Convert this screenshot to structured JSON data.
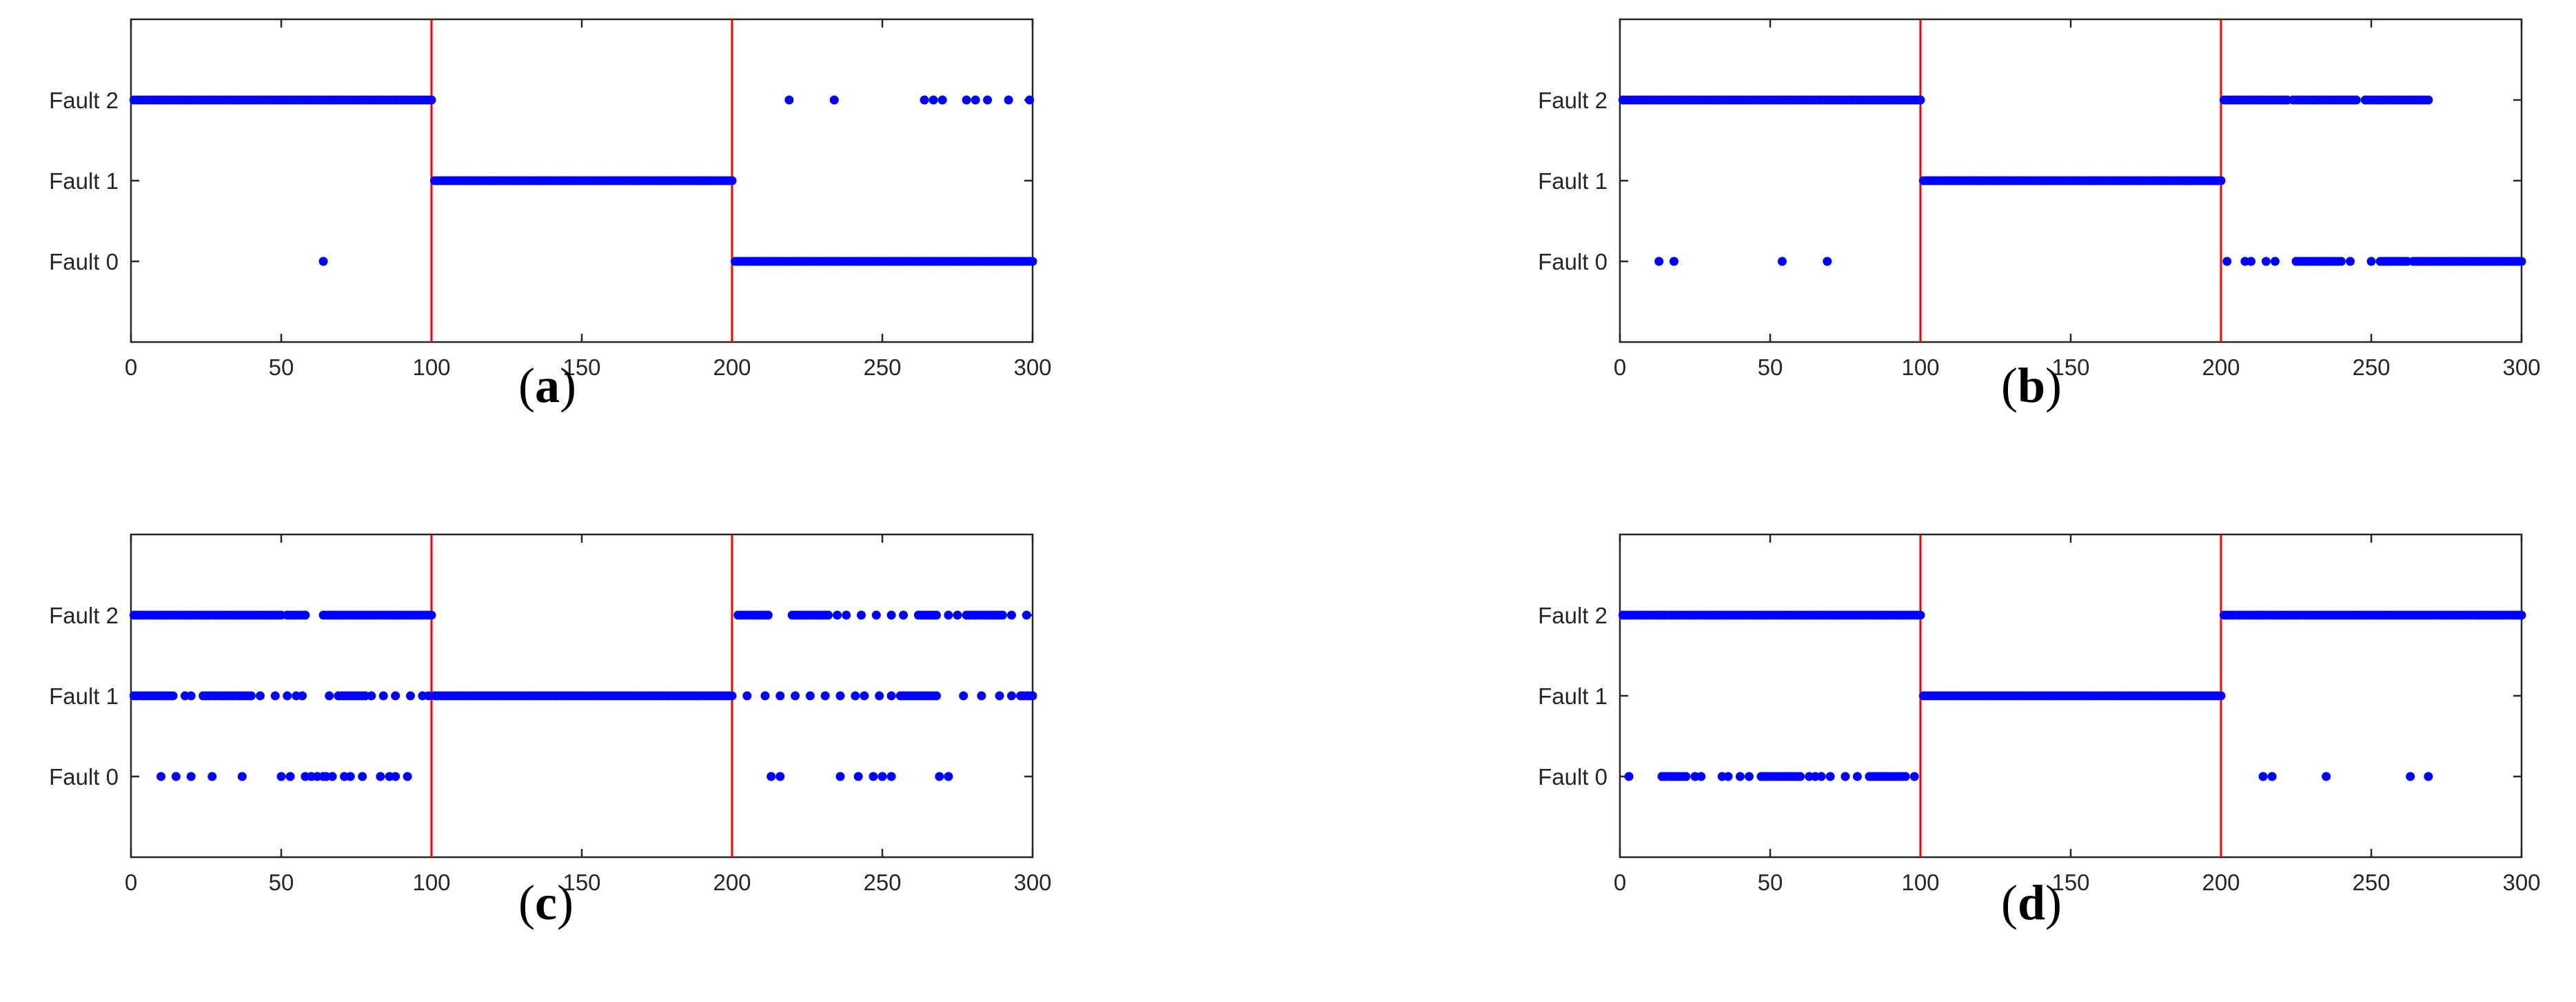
{
  "figure": {
    "panels": [
      {
        "id": "a",
        "label": "(a)",
        "label_letter": "a"
      },
      {
        "id": "b",
        "label": "(b)",
        "label_letter": "b"
      },
      {
        "id": "c",
        "label": "(c)",
        "label_letter": "c"
      },
      {
        "id": "d",
        "label": "(d)",
        "label_letter": "d"
      }
    ]
  },
  "chart_data": [
    {
      "type": "scatter",
      "panel": "a",
      "title": "",
      "xlabel": "",
      "ylabel": "",
      "xlim": [
        0,
        300
      ],
      "ylim": [
        -1,
        3
      ],
      "xticks": [
        0,
        50,
        100,
        150,
        200,
        250,
        300
      ],
      "yticks": [
        0,
        1,
        2
      ],
      "ytick_labels": [
        "Fault 0",
        "Fault 1",
        "Fault 2"
      ],
      "vlines": [
        100,
        200
      ],
      "vline_color": "#ff0000",
      "marker_color": "#0000ff",
      "grid": false,
      "series": [
        {
          "runs": [
            [
              1,
              100,
              2
            ],
            [
              101,
              200,
              1
            ],
            [
              201,
              300,
              0
            ]
          ],
          "points": [
            [
              64,
              0
            ],
            [
              219,
              2
            ],
            [
              234,
              2
            ],
            [
              264,
              2
            ],
            [
              267,
              2
            ],
            [
              270,
              2
            ],
            [
              278,
              2
            ],
            [
              281,
              2
            ],
            [
              285,
              2
            ],
            [
              292,
              2
            ],
            [
              299,
              2
            ]
          ]
        }
      ]
    },
    {
      "type": "scatter",
      "panel": "b",
      "title": "",
      "xlabel": "",
      "ylabel": "",
      "xlim": [
        0,
        300
      ],
      "ylim": [
        -1,
        3
      ],
      "xticks": [
        0,
        50,
        100,
        150,
        200,
        250,
        300
      ],
      "yticks": [
        0,
        1,
        2
      ],
      "ytick_labels": [
        "Fault 0",
        "Fault 1",
        "Fault 2"
      ],
      "vlines": [
        100,
        200
      ],
      "vline_color": "#ff0000",
      "marker_color": "#0000ff",
      "grid": false,
      "series": [
        {
          "runs": [
            [
              1,
              100,
              2
            ],
            [
              101,
              200,
              1
            ],
            [
              201,
              222,
              2
            ],
            [
              224,
              245,
              2
            ],
            [
              248,
              269,
              2
            ],
            [
              264,
              300,
              0
            ],
            [
              225,
              240,
              0
            ],
            [
              253,
              262,
              0
            ]
          ],
          "points": [
            [
              13,
              0
            ],
            [
              18,
              0
            ],
            [
              54,
              0
            ],
            [
              69,
              0
            ],
            [
              202,
              0
            ],
            [
              208,
              0
            ],
            [
              210,
              0
            ],
            [
              215,
              0
            ],
            [
              218,
              0
            ],
            [
              243,
              0
            ],
            [
              250,
              0
            ],
            [
              222,
              2
            ],
            [
              227,
              2
            ],
            [
              232,
              2
            ]
          ]
        }
      ]
    },
    {
      "type": "scatter",
      "panel": "c",
      "title": "",
      "xlabel": "",
      "ylabel": "",
      "xlim": [
        0,
        300
      ],
      "ylim": [
        -1,
        3
      ],
      "xticks": [
        0,
        50,
        100,
        150,
        200,
        250,
        300
      ],
      "yticks": [
        0,
        1,
        2
      ],
      "ytick_labels": [
        "Fault 0",
        "Fault 1",
        "Fault 2"
      ],
      "vlines": [
        100,
        200
      ],
      "vline_color": "#ff0000",
      "marker_color": "#0000ff",
      "grid": false,
      "series": [
        {
          "runs": [
            [
              1,
              50,
              2
            ],
            [
              52,
              58,
              2
            ],
            [
              64,
              100,
              2
            ],
            [
              101,
              200,
              1
            ],
            [
              2,
              14,
              1
            ],
            [
              24,
              40,
              1
            ],
            [
              69,
              78,
              1
            ],
            [
              202,
              212,
              2
            ],
            [
              220,
              232,
              2
            ],
            [
              262,
              268,
              2
            ],
            [
              278,
              290,
              2
            ],
            [
              256,
              268,
              1
            ],
            [
              296,
              300,
              1
            ]
          ],
          "points": [
            [
              1,
              1
            ],
            [
              18,
              1
            ],
            [
              20,
              1
            ],
            [
              43,
              1
            ],
            [
              48,
              1
            ],
            [
              52,
              1
            ],
            [
              55,
              1
            ],
            [
              57,
              1
            ],
            [
              66,
              1
            ],
            [
              80,
              1
            ],
            [
              84,
              1
            ],
            [
              88,
              1
            ],
            [
              93,
              1
            ],
            [
              97,
              1
            ],
            [
              99,
              1
            ],
            [
              10,
              0
            ],
            [
              15,
              0
            ],
            [
              20,
              0
            ],
            [
              27,
              0
            ],
            [
              37,
              0
            ],
            [
              50,
              0
            ],
            [
              53,
              0
            ],
            [
              58,
              0
            ],
            [
              60,
              0
            ],
            [
              62,
              0
            ],
            [
              64,
              0
            ],
            [
              65,
              0
            ],
            [
              67,
              0
            ],
            [
              71,
              0
            ],
            [
              73,
              0
            ],
            [
              77,
              0
            ],
            [
              83,
              0
            ],
            [
              86,
              0
            ],
            [
              88,
              0
            ],
            [
              92,
              0
            ],
            [
              213,
              0
            ],
            [
              216,
              0
            ],
            [
              236,
              0
            ],
            [
              242,
              0
            ],
            [
              247,
              0
            ],
            [
              250,
              0
            ],
            [
              253,
              0
            ],
            [
              269,
              0
            ],
            [
              272,
              0
            ],
            [
              205,
              1
            ],
            [
              211,
              1
            ],
            [
              216,
              1
            ],
            [
              221,
              1
            ],
            [
              226,
              1
            ],
            [
              231,
              1
            ],
            [
              236,
              1
            ],
            [
              241,
              1
            ],
            [
              244,
              1
            ],
            [
              249,
              1
            ],
            [
              253,
              1
            ],
            [
              277,
              1
            ],
            [
              283,
              1
            ],
            [
              289,
              1
            ],
            [
              293,
              1
            ],
            [
              235,
              2
            ],
            [
              238,
              2
            ],
            [
              243,
              2
            ],
            [
              248,
              2
            ],
            [
              253,
              2
            ],
            [
              257,
              2
            ],
            [
              272,
              2
            ],
            [
              275,
              2
            ],
            [
              293,
              2
            ],
            [
              298,
              2
            ]
          ]
        }
      ]
    },
    {
      "type": "scatter",
      "panel": "d",
      "title": "",
      "xlabel": "",
      "ylabel": "",
      "xlim": [
        0,
        300
      ],
      "ylim": [
        -1,
        3
      ],
      "xticks": [
        0,
        50,
        100,
        150,
        200,
        250,
        300
      ],
      "yticks": [
        0,
        1,
        2
      ],
      "ytick_labels": [
        "Fault 0",
        "Fault 1",
        "Fault 2"
      ],
      "vlines": [
        100,
        200
      ],
      "vline_color": "#ff0000",
      "marker_color": "#0000ff",
      "grid": false,
      "series": [
        {
          "runs": [
            [
              1,
              100,
              2
            ],
            [
              101,
              200,
              1
            ],
            [
              201,
              300,
              2
            ],
            [
              14,
              22,
              0
            ],
            [
              47,
              60,
              0
            ],
            [
              83,
              95,
              0
            ]
          ],
          "points": [
            [
              3,
              0
            ],
            [
              25,
              0
            ],
            [
              27,
              0
            ],
            [
              34,
              0
            ],
            [
              36,
              0
            ],
            [
              40,
              0
            ],
            [
              43,
              0
            ],
            [
              63,
              0
            ],
            [
              65,
              0
            ],
            [
              67,
              0
            ],
            [
              70,
              0
            ],
            [
              75,
              0
            ],
            [
              79,
              0
            ],
            [
              98,
              0
            ],
            [
              214,
              0
            ],
            [
              217,
              0
            ],
            [
              235,
              0
            ],
            [
              263,
              0
            ],
            [
              269,
              0
            ]
          ]
        }
      ]
    }
  ]
}
